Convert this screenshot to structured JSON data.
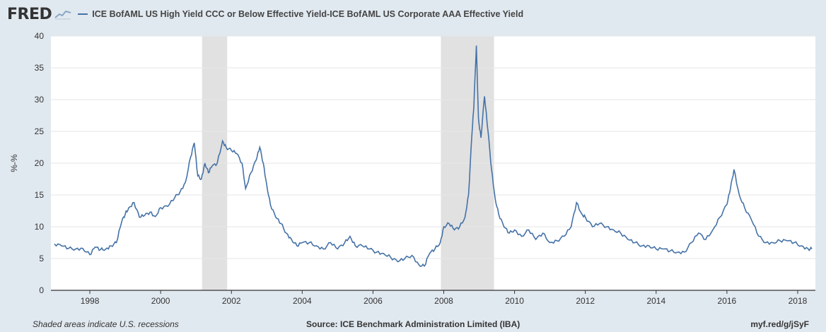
{
  "header": {
    "logo_text": "FRED",
    "legend_label": "ICE BofAML US High Yield CCC or Below Effective Yield-ICE BofAML US Corporate AAA Effective Yield"
  },
  "footer": {
    "note": "Shaded areas indicate U.S. recessions",
    "source": "Source: ICE Benchmark Administration Limited (IBA)",
    "link": "myf.red/g/jSyF"
  },
  "colors": {
    "line": "#4572a7",
    "recession": "#e1e1e1",
    "grid": "#e6e6e6"
  },
  "chart_data": {
    "type": "line",
    "title": "",
    "xlabel": "",
    "ylabel": "%-%",
    "xlim": [
      1996.9,
      2018.5
    ],
    "ylim": [
      0,
      40
    ],
    "yticks": [
      0,
      5,
      10,
      15,
      20,
      25,
      30,
      35,
      40
    ],
    "xticks": [
      1998,
      2000,
      2002,
      2004,
      2006,
      2008,
      2010,
      2012,
      2014,
      2016,
      2018
    ],
    "grid": true,
    "recessions": [
      [
        2001.17,
        2001.88
      ],
      [
        2007.92,
        2009.42
      ]
    ],
    "series": [
      {
        "name": "ICE BofAML US High Yield CCC or Below Effective Yield-ICE BofAML US Corporate AAA Effective Yield",
        "x": [
          1997.0,
          1997.2,
          1997.4,
          1997.6,
          1997.8,
          1998.0,
          1998.15,
          1998.3,
          1998.45,
          1998.6,
          1998.75,
          1998.9,
          1999.0,
          1999.1,
          1999.25,
          1999.4,
          1999.55,
          1999.7,
          1999.85,
          2000.0,
          2000.2,
          2000.4,
          2000.55,
          2000.7,
          2000.85,
          2000.95,
          2001.05,
          2001.15,
          2001.25,
          2001.35,
          2001.45,
          2001.6,
          2001.75,
          2001.85,
          2002.0,
          2002.15,
          2002.3,
          2002.4,
          2002.55,
          2002.7,
          2002.8,
          2002.9,
          2003.0,
          2003.1,
          2003.25,
          2003.4,
          2003.55,
          2003.7,
          2003.85,
          2004.0,
          2004.2,
          2004.4,
          2004.6,
          2004.8,
          2005.0,
          2005.2,
          2005.35,
          2005.5,
          2005.7,
          2005.9,
          2006.1,
          2006.3,
          2006.5,
          2006.7,
          2006.9,
          2007.1,
          2007.3,
          2007.45,
          2007.6,
          2007.75,
          2007.9,
          2008.0,
          2008.15,
          2008.3,
          2008.45,
          2008.6,
          2008.7,
          2008.8,
          2008.85,
          2008.92,
          2008.98,
          2009.05,
          2009.15,
          2009.25,
          2009.35,
          2009.45,
          2009.55,
          2009.7,
          2009.85,
          2010.0,
          2010.2,
          2010.4,
          2010.6,
          2010.8,
          2011.0,
          2011.2,
          2011.4,
          2011.6,
          2011.75,
          2011.9,
          2012.0,
          2012.2,
          2012.4,
          2012.6,
          2012.8,
          2013.0,
          2013.2,
          2013.4,
          2013.6,
          2013.8,
          2014.0,
          2014.2,
          2014.4,
          2014.6,
          2014.8,
          2015.0,
          2015.2,
          2015.4,
          2015.6,
          2015.8,
          2016.0,
          2016.1,
          2016.2,
          2016.35,
          2016.5,
          2016.7,
          2016.9,
          2017.1,
          2017.3,
          2017.5,
          2017.7,
          2017.9,
          2018.1,
          2018.3,
          2018.4
        ],
        "values": [
          7.3,
          7.0,
          6.6,
          6.5,
          6.6,
          5.6,
          6.8,
          6.4,
          6.5,
          7.0,
          7.5,
          10.8,
          12.0,
          13.0,
          13.8,
          11.5,
          11.8,
          12.3,
          11.6,
          13.0,
          13.2,
          14.6,
          15.5,
          17.0,
          21.0,
          23.2,
          18.0,
          17.5,
          20.0,
          18.5,
          19.5,
          20.0,
          23.5,
          22.5,
          22.0,
          21.5,
          20.0,
          16.0,
          18.5,
          20.5,
          22.5,
          20.0,
          16.5,
          13.5,
          11.5,
          10.5,
          9.0,
          8.0,
          7.0,
          7.5,
          7.5,
          7.0,
          6.5,
          7.5,
          6.5,
          7.5,
          8.5,
          7.0,
          7.0,
          6.5,
          6.0,
          5.8,
          5.2,
          4.5,
          5.0,
          5.5,
          4.0,
          3.8,
          5.8,
          6.5,
          7.5,
          10.0,
          10.5,
          9.5,
          10.0,
          11.5,
          15.0,
          25.0,
          29.0,
          38.5,
          27.0,
          24.0,
          30.5,
          25.0,
          19.0,
          14.5,
          12.0,
          10.0,
          9.0,
          9.5,
          8.5,
          9.5,
          8.0,
          9.0,
          7.5,
          7.8,
          8.5,
          10.0,
          13.8,
          12.0,
          11.5,
          10.0,
          10.5,
          10.0,
          9.5,
          9.0,
          8.0,
          7.5,
          7.0,
          7.0,
          6.5,
          6.5,
          6.2,
          6.0,
          6.0,
          7.5,
          9.0,
          8.0,
          9.5,
          11.5,
          13.5,
          16.0,
          19.0,
          15.0,
          13.0,
          11.0,
          8.5,
          7.5,
          7.5,
          7.8,
          7.8,
          7.5,
          7.0,
          6.5,
          6.5
        ]
      }
    ]
  }
}
